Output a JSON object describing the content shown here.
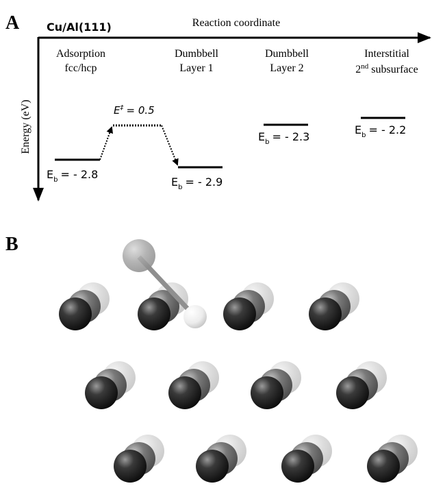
{
  "panel_a": {
    "label": "A",
    "system": "Cu/Al(111)",
    "x_axis_label": "Reaction coordinate",
    "y_axis_label": "Energy (eV)",
    "states": [
      {
        "name_lines": [
          "Adsorption",
          "fcc/hcp"
        ],
        "energy": {
          "symbol": "E",
          "subscript": "b",
          "text": "= - 2.8"
        }
      },
      {
        "name_lines": [
          "Dumbbell",
          "Layer 1"
        ],
        "energy": {
          "symbol": "E",
          "subscript": "b",
          "text": "= - 2.9"
        }
      },
      {
        "name_lines": [
          "Dumbbell",
          "Layer 2"
        ],
        "energy": {
          "symbol": "E",
          "subscript": "b",
          "text": "= - 2.3"
        }
      },
      {
        "name_lines": [
          "Interstitial",
          {
            "prefix": "2",
            "sup": "nd",
            "suffix": " subsurface"
          }
        ],
        "energy": {
          "symbol": "E",
          "subscript": "b",
          "text": "= - 2.2"
        }
      }
    ],
    "barrier": {
      "symbol": "E",
      "superscript": "‡",
      "text": "= 0.5"
    }
  },
  "panel_b": {
    "label": "B"
  }
}
